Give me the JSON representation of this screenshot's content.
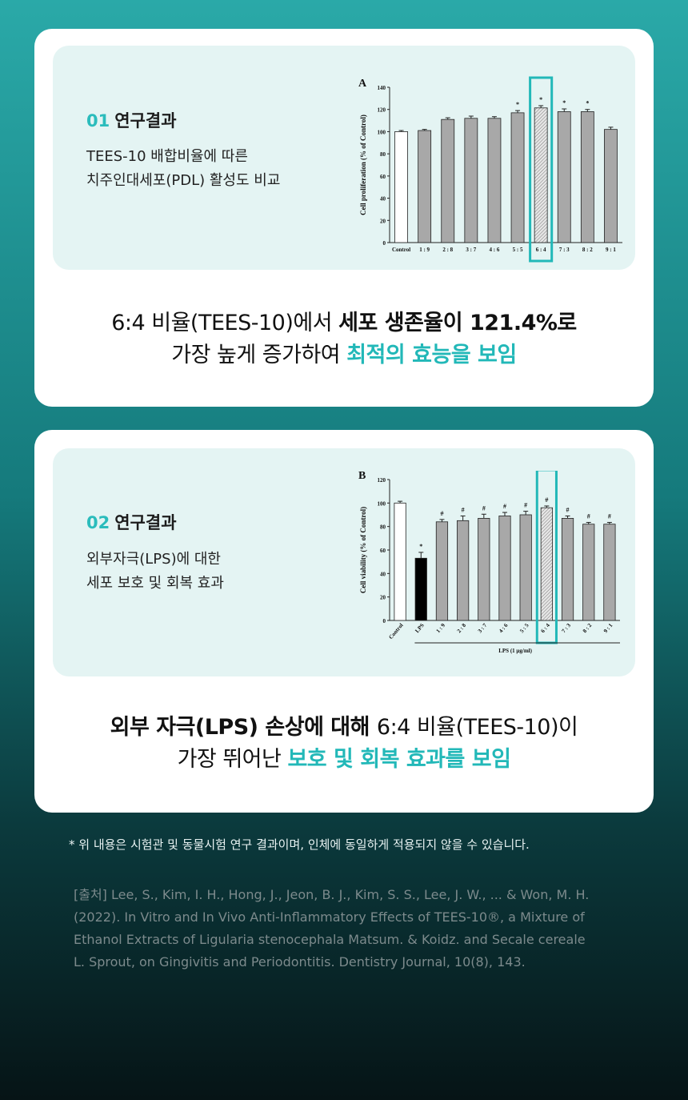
{
  "cards": [
    {
      "number": "01",
      "title": "연구결과",
      "description": [
        "TEES-10 배합비율에 따른",
        "치주인대세포(PDL) 활성도 비교"
      ],
      "summary": [
        [
          {
            "text": "6:4 비율(TEES-10)에서 ",
            "style": "normal"
          },
          {
            "text": "세포 생존율이 121.4%로",
            "style": "bold"
          }
        ],
        [
          {
            "text": "가장 높게 증가하여 ",
            "style": "normal"
          },
          {
            "text": "최적의 효능을 보임",
            "style": "accent"
          }
        ]
      ]
    },
    {
      "number": "02",
      "title": "연구결과",
      "description": [
        "외부자극(LPS)에 대한",
        "세포 보호 및 회복 효과"
      ],
      "summary": [
        [
          {
            "text": "외부 자극(LPS) 손상에 대해 ",
            "style": "bold"
          },
          {
            "text": "6:4 비율(TEES-10)이",
            "style": "normal"
          }
        ],
        [
          {
            "text": "가장 뛰어난 ",
            "style": "normal"
          },
          {
            "text": "보호 및 회복 효과를 보임",
            "style": "accent"
          }
        ]
      ]
    }
  ],
  "chart_data": [
    {
      "type": "bar",
      "panel": "A",
      "y_label": "Cell proliferation (% of Control)",
      "categories": [
        "Control",
        "1 : 9",
        "2 : 8",
        "3 : 7",
        "4 : 6",
        "5 : 5",
        "6 : 4",
        "7 : 3",
        "8 : 2",
        "9 : 1"
      ],
      "values": [
        100,
        101,
        111,
        112,
        112,
        117,
        121.4,
        118,
        118,
        102
      ],
      "errors": [
        1,
        1,
        1.5,
        2,
        1.5,
        2,
        2,
        2.5,
        2,
        2
      ],
      "markers": [
        null,
        null,
        null,
        null,
        null,
        "*",
        "*",
        "*",
        "*",
        null
      ],
      "colors": [
        "#ffffff",
        "#a8a8a8",
        "#a8a8a8",
        "#a8a8a8",
        "#a8a8a8",
        "#a8a8a8",
        "#a8a8a8",
        "#a8a8a8",
        "#a8a8a8",
        "#a8a8a8"
      ],
      "highlight": 6,
      "ylim": [
        0,
        140
      ],
      "yticks": [
        0,
        20,
        40,
        60,
        80,
        100,
        120,
        140
      ]
    },
    {
      "type": "bar",
      "panel": "B",
      "y_label": "Cell viability (% of Control)",
      "x_label": "LPS (1 μg/ml)",
      "categories": [
        "Control",
        "LPS",
        "1 : 9",
        "2 : 8",
        "3 : 7",
        "4 : 6",
        "5 : 5",
        "6 : 4",
        "7 : 3",
        "8 : 2",
        "9 : 1"
      ],
      "values": [
        100,
        53,
        84,
        85,
        87,
        89,
        90,
        96,
        87,
        82,
        82
      ],
      "errors": [
        1.5,
        5,
        2,
        4,
        3.5,
        3,
        3,
        1.5,
        2,
        1.5,
        1.5
      ],
      "markers": [
        null,
        "*",
        "#",
        "#",
        "#",
        "#",
        "#",
        "#",
        "#",
        "#",
        "#"
      ],
      "colors": [
        "#ffffff",
        "#000000",
        "#a8a8a8",
        "#a8a8a8",
        "#a8a8a8",
        "#a8a8a8",
        "#a8a8a8",
        "#a8a8a8",
        "#a8a8a8",
        "#a8a8a8",
        "#a8a8a8"
      ],
      "highlight": 7,
      "ylim": [
        0,
        120
      ],
      "yticks": [
        0,
        20,
        40,
        60,
        80,
        100,
        120
      ]
    }
  ],
  "footnote": "* 위 내용은 시험관 및 동물시험 연구 결과이며, 인체에 동일하게 적용되지 않을 수 있습니다.",
  "citation": [
    "[출처] Lee, S., Kim, I. H., Hong, J., Jeon, B. J., Kim, S. S., Lee, J. W., ... & Won, M. H.",
    "(2022). In Vitro and In Vivo Anti-Inflammatory Effects of TEES-10®, a Mixture of",
    "Ethanol Extracts of Ligularia stenocephala Matsum. & Koidz. and Secale cereale",
    "L. Sprout, on Gingivitis and Periodontitis. Dentistry Journal, 10(8), 143."
  ]
}
